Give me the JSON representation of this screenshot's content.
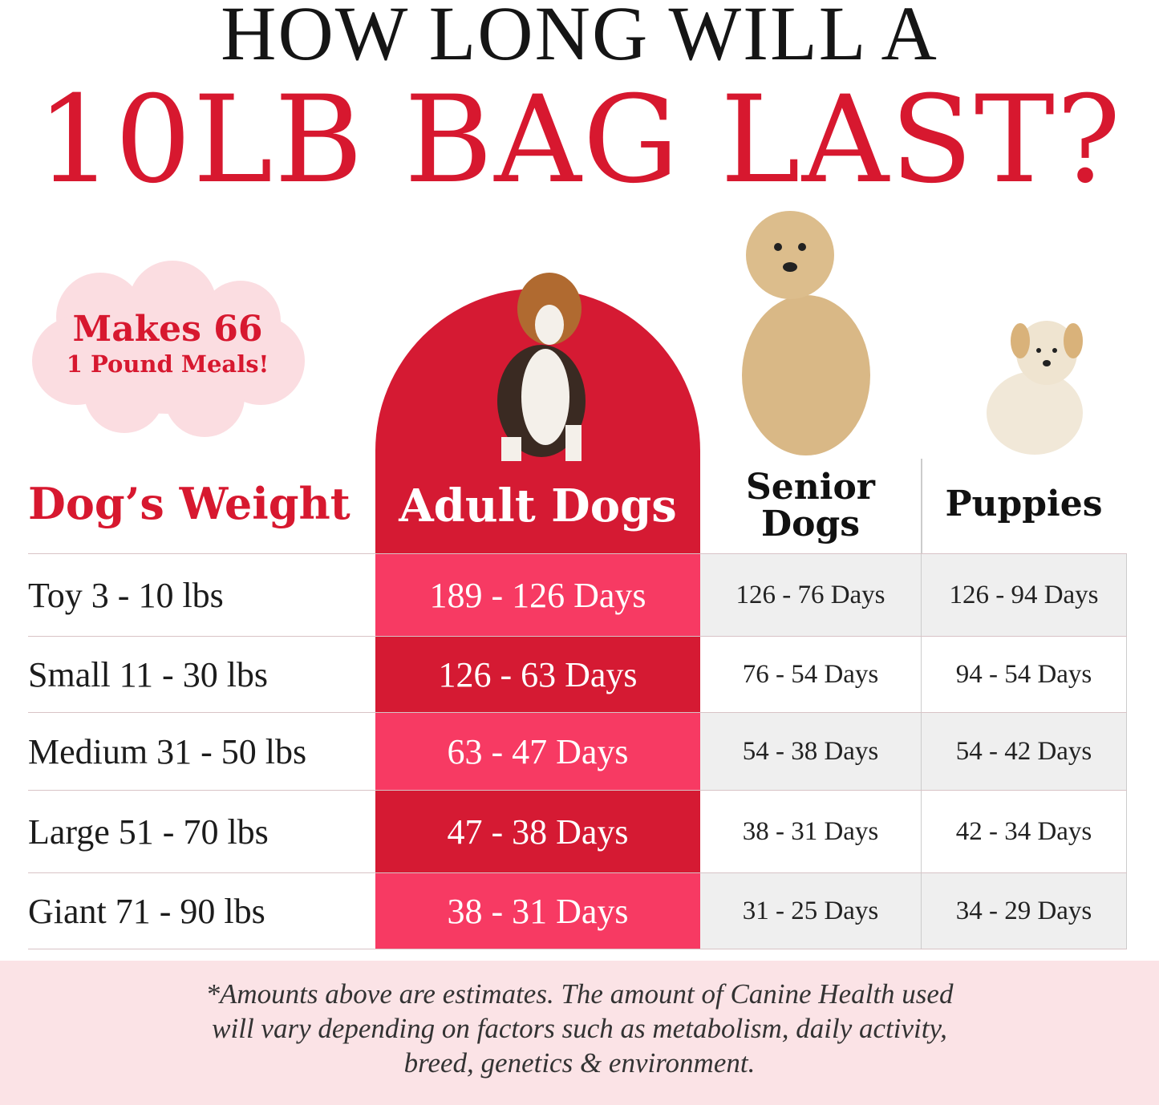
{
  "title": {
    "line1": "HOW LONG WILL A",
    "line2": "10LB BAG LAST?"
  },
  "badge": {
    "line1": "Makes 66",
    "line2": "1 Pound Meals!"
  },
  "headers": {
    "weight": "Dog’s Weight",
    "adult": "Adult Dogs",
    "senior_line1": "Senior",
    "senior_line2": "Dogs",
    "puppies": "Puppies"
  },
  "rows": [
    {
      "weight": "Toy 3 - 10 lbs",
      "adult": "189 - 126 Days",
      "senior": "126 - 76 Days",
      "puppies": "126 - 94 Days"
    },
    {
      "weight": "Small 11 - 30 lbs",
      "adult": "126 - 63 Days",
      "senior": "76 - 54 Days",
      "puppies": "94 - 54 Days"
    },
    {
      "weight": "Medium 31 - 50 lbs",
      "adult": "63 - 47 Days",
      "senior": "54 - 38 Days",
      "puppies": "54 - 42 Days"
    },
    {
      "weight": "Large 51 - 70 lbs",
      "adult": "47 - 38 Days",
      "senior": "38 - 31 Days",
      "puppies": "42 - 34 Days"
    },
    {
      "weight": "Giant 71 - 90 lbs",
      "adult": "38 - 31 Days",
      "senior": "31 - 25 Days",
      "puppies": "34 - 29 Days"
    }
  ],
  "footnote": {
    "line1": "*Amounts above are estimates. The amount of Canine Health used",
    "line2": "will vary depending on factors such as metabolism, daily activity,",
    "line3": "breed, genetics & environment."
  },
  "colors": {
    "red": "#d51a33",
    "pink": "#f73a63",
    "gray": "#efefef",
    "footer": "#fbe3e6"
  }
}
